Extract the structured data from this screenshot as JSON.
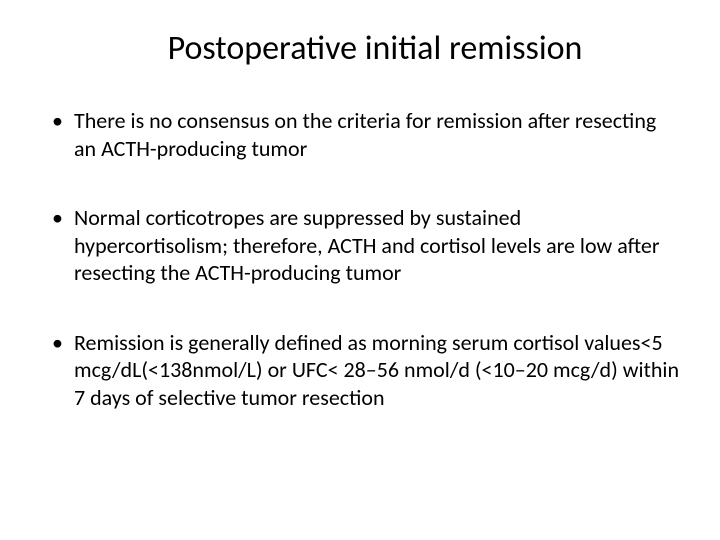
{
  "slide": {
    "title": "Postoperative initial remission",
    "title_fontsize": 34,
    "title_color": "#000000",
    "bullets": [
      "There is no consensus on the criteria for remission after resecting an ACTH-producing tumor",
      "Normal corticotropes are suppressed by sustained hypercortisolism; therefore, ACTH and cortisol levels are low after resecting the ACTH-producing tumor",
      "Remission is generally defined as morning serum cortisol values<5 mcg/dL(<138nmol/L) or UFC< 28–56 nmol/d (<10–20 mcg/d) within 7 days of selective tumor resection"
    ],
    "bullet_fontsize": 22,
    "bullet_color": "#000000",
    "background_color": "#ffffff",
    "font_family": "Calibri"
  }
}
